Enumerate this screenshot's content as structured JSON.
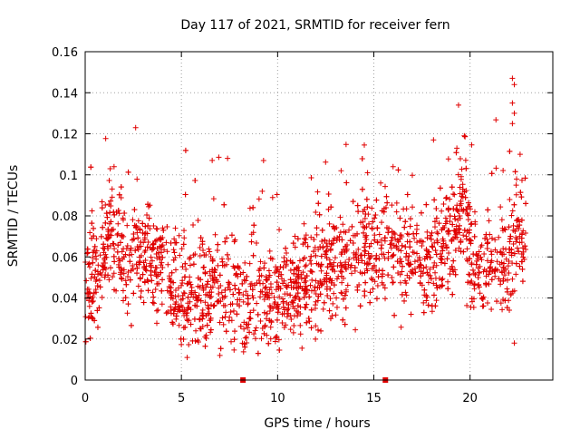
{
  "chart_data": {
    "type": "scatter",
    "title": "Day 117 of 2021, SRMTID for receiver fern",
    "xlabel": "GPS time / hours",
    "ylabel": "SRMTID / TECUs",
    "xlim": [
      0,
      24.3
    ],
    "ylim": [
      0,
      0.16
    ],
    "x_ticks": [
      0,
      5,
      10,
      15,
      20
    ],
    "x_tick_labels": [
      "0",
      "5",
      "10",
      "15",
      "20"
    ],
    "y_ticks": [
      0,
      0.02,
      0.04,
      0.06,
      0.08,
      0.1,
      0.12,
      0.14,
      0.16
    ],
    "y_tick_labels": [
      "0",
      "0.02",
      "0.04",
      "0.06",
      "0.08",
      "0.1",
      "0.12",
      "0.14",
      "0.16"
    ],
    "grid": true,
    "marker": "+",
    "series_color": "#e00000",
    "gap_markers_x": [
      8.2,
      15.6
    ],
    "series": [
      {
        "name": "SRMTID",
        "points_generated": true,
        "x_range": [
          0,
          22.9
        ],
        "y_range": [
          0.01,
          0.147
        ]
      }
    ]
  }
}
